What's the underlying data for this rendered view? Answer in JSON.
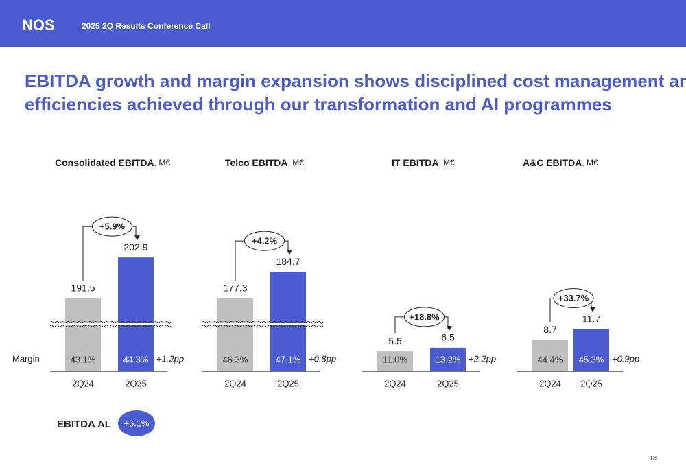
{
  "header": {
    "logo": "NOS",
    "event": "2025 2Q Results Conference Call"
  },
  "title_lines": [
    "EBITDA growth and margin expansion shows disciplined cost management and",
    "efficiencies achieved through our transformation and AI programmes"
  ],
  "margin_label": "Margin",
  "ebitda_al": {
    "label": "EBITDA AL",
    "change": "+6.1%"
  },
  "page_number": "18",
  "chart_data": [
    {
      "type": "bar",
      "title": "Consolidated EBITDA",
      "unit": ", M€",
      "categories": [
        "2Q24",
        "2Q25"
      ],
      "values": [
        191.5,
        202.9
      ],
      "colors": [
        "#c0c0c0",
        "#4a5ccf"
      ],
      "axis_break": true,
      "growth": "+5.9%",
      "margin": {
        "values": [
          43.1,
          44.3
        ],
        "value_labels": [
          "43.1%",
          "44.3%"
        ]
      },
      "margin_change": "+1.2pp"
    },
    {
      "type": "bar",
      "title": "Telco EBITDA",
      "unit": ", M€,",
      "categories": [
        "2Q24",
        "2Q25"
      ],
      "values": [
        177.3,
        184.7
      ],
      "colors": [
        "#c0c0c0",
        "#4a5ccf"
      ],
      "axis_break": true,
      "growth": "+4.2%",
      "margin": {
        "values": [
          46.3,
          47.1
        ],
        "value_labels": [
          "46.3%",
          "47.1%"
        ]
      },
      "margin_change": "+0.8pp"
    },
    {
      "type": "bar",
      "title": "IT EBITDA",
      "unit": ", M€",
      "categories": [
        "2Q24",
        "2Q25"
      ],
      "values": [
        5.5,
        6.5
      ],
      "colors": [
        "#c0c0c0",
        "#4a5ccf"
      ],
      "axis_break": false,
      "growth": "+18.8%",
      "margin": {
        "values": [
          11.0,
          13.2
        ],
        "value_labels": [
          "11.0%",
          "13.2%"
        ]
      },
      "margin_change": "+2.2pp"
    },
    {
      "type": "bar",
      "title": "A&C EBITDA",
      "unit": ", M€",
      "categories": [
        "2Q24",
        "2Q25"
      ],
      "values": [
        8.7,
        11.7
      ],
      "colors": [
        "#c0c0c0",
        "#4a5ccf"
      ],
      "axis_break": false,
      "growth": "+33.7%",
      "margin": {
        "values": [
          44.4,
          45.3
        ],
        "value_labels": [
          "44.4%",
          "45.3%"
        ]
      },
      "margin_change": "+0.9pp"
    }
  ]
}
